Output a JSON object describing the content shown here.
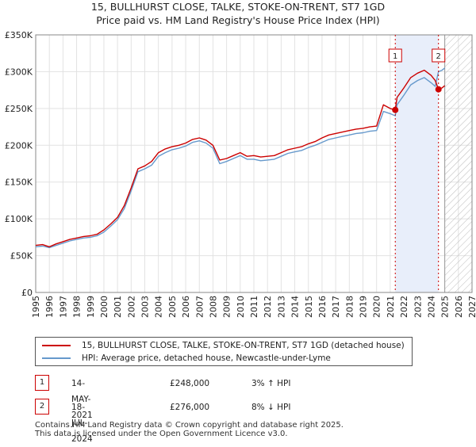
{
  "title_line1": "15, BULLHURST CLOSE, TALKE, STOKE-ON-TRENT, ST7 1GD",
  "title_line2": "Price paid vs. HM Land Registry's House Price Index (HPI)",
  "colors": {
    "property": "#cc0000",
    "hpi": "#6699cc",
    "shade": "#e8eefa",
    "annotation": "#cc0000"
  },
  "chart_data": {
    "type": "line",
    "title": "15, BULLHURST CLOSE, TALKE, STOKE-ON-TRENT, ST7 1GD",
    "subtitle": "Price paid vs. HM Land Registry's House Price Index (HPI)",
    "xlabel": "",
    "ylabel": "",
    "xlim": [
      1995,
      2027
    ],
    "ylim": [
      0,
      350000
    ],
    "x_ticks": [
      1995,
      1996,
      1997,
      1998,
      1999,
      2000,
      2001,
      2002,
      2003,
      2004,
      2005,
      2006,
      2007,
      2008,
      2009,
      2010,
      2011,
      2012,
      2013,
      2014,
      2015,
      2016,
      2017,
      2018,
      2019,
      2020,
      2021,
      2022,
      2023,
      2024,
      2025,
      2026,
      2027
    ],
    "y_ticks": [
      {
        "value": 0,
        "label": "£0"
      },
      {
        "value": 50000,
        "label": "£50K"
      },
      {
        "value": 100000,
        "label": "£100K"
      },
      {
        "value": 150000,
        "label": "£150K"
      },
      {
        "value": 200000,
        "label": "£200K"
      },
      {
        "value": 250000,
        "label": "£250K"
      },
      {
        "value": 300000,
        "label": "£300K"
      },
      {
        "value": 350000,
        "label": "£350K"
      }
    ],
    "grid": true,
    "shaded_period": [
      2021.37,
      2024.54
    ],
    "hatched_from": 2025.0,
    "series": [
      {
        "name": "15, BULLHURST CLOSE, TALKE, STOKE-ON-TRENT, ST7 1GD (detached house)",
        "color": "#cc0000",
        "x": [
          1995.0,
          1995.5,
          1996.0,
          1996.5,
          1997.0,
          1997.5,
          1998.0,
          1998.5,
          1999.0,
          1999.5,
          2000.0,
          2000.5,
          2001.0,
          2001.5,
          2002.0,
          2002.5,
          2003.0,
          2003.5,
          2004.0,
          2004.5,
          2005.0,
          2005.5,
          2006.0,
          2006.5,
          2007.0,
          2007.5,
          2008.0,
          2008.5,
          2009.0,
          2009.5,
          2010.0,
          2010.5,
          2011.0,
          2011.5,
          2012.0,
          2012.5,
          2013.0,
          2013.5,
          2014.0,
          2014.5,
          2015.0,
          2015.5,
          2016.0,
          2016.5,
          2017.0,
          2017.5,
          2018.0,
          2018.5,
          2019.0,
          2019.5,
          2020.0,
          2020.5,
          2021.0,
          2021.37,
          2021.5,
          2022.0,
          2022.5,
          2023.0,
          2023.5,
          2024.0,
          2024.3,
          2024.54,
          2024.8,
          2025.0
        ],
        "values": [
          64000,
          65000,
          62000,
          66000,
          69000,
          72000,
          74000,
          76000,
          77000,
          79000,
          85000,
          93000,
          102000,
          118000,
          142000,
          168000,
          172000,
          178000,
          190000,
          195000,
          198000,
          200000,
          203000,
          208000,
          210000,
          207000,
          200000,
          180000,
          182000,
          186000,
          190000,
          185000,
          186000,
          184000,
          185000,
          186000,
          190000,
          194000,
          196000,
          198000,
          202000,
          205000,
          210000,
          214000,
          216000,
          218000,
          220000,
          222000,
          223000,
          225000,
          226000,
          255000,
          250000,
          248000,
          265000,
          278000,
          292000,
          298000,
          302000,
          295000,
          288000,
          276000,
          278000,
          281000
        ]
      },
      {
        "name": "HPI: Average price, detached house, Newcastle-under-Lyme",
        "color": "#6699cc",
        "x": [
          1995.0,
          1995.5,
          1996.0,
          1996.5,
          1997.0,
          1997.5,
          1998.0,
          1998.5,
          1999.0,
          1999.5,
          2000.0,
          2000.5,
          2001.0,
          2001.5,
          2002.0,
          2002.5,
          2003.0,
          2003.5,
          2004.0,
          2004.5,
          2005.0,
          2005.5,
          2006.0,
          2006.5,
          2007.0,
          2007.5,
          2008.0,
          2008.5,
          2009.0,
          2009.5,
          2010.0,
          2010.5,
          2011.0,
          2011.5,
          2012.0,
          2012.5,
          2013.0,
          2013.5,
          2014.0,
          2014.5,
          2015.0,
          2015.5,
          2016.0,
          2016.5,
          2017.0,
          2017.5,
          2018.0,
          2018.5,
          2019.0,
          2019.5,
          2020.0,
          2020.5,
          2021.0,
          2021.37,
          2021.5,
          2022.0,
          2022.5,
          2023.0,
          2023.5,
          2024.0,
          2024.3,
          2024.54,
          2024.8,
          2025.0
        ],
        "values": [
          62000,
          63000,
          61000,
          64000,
          67000,
          70000,
          72000,
          74000,
          75000,
          77000,
          82000,
          90000,
          99000,
          114000,
          138000,
          164000,
          168000,
          173000,
          185000,
          190000,
          194000,
          196000,
          199000,
          204000,
          206000,
          203000,
          196000,
          175000,
          178000,
          182000,
          186000,
          181000,
          181000,
          179000,
          180000,
          181000,
          185000,
          189000,
          191000,
          193000,
          197000,
          200000,
          204000,
          208000,
          210000,
          212000,
          214000,
          216000,
          217000,
          219000,
          220000,
          246000,
          243000,
          240000,
          255000,
          268000,
          282000,
          288000,
          292000,
          285000,
          280000,
          300000,
          302000,
          305000
        ]
      }
    ],
    "annotations": [
      {
        "label": "1",
        "x": 2021.37,
        "value": 248000
      },
      {
        "label": "2",
        "x": 2024.54,
        "value": 276000
      }
    ]
  },
  "legend": {
    "property_label": "15, BULLHURST CLOSE, TALKE, STOKE-ON-TRENT, ST7 1GD (detached house)",
    "hpi_label": "HPI: Average price, detached house, Newcastle-under-Lyme"
  },
  "transactions": [
    {
      "num": "1",
      "date": "14-MAY-2021",
      "price": "£248,000",
      "hpi": "3% ↑ HPI"
    },
    {
      "num": "2",
      "date": "18-JUL-2024",
      "price": "£276,000",
      "hpi": "8% ↓ HPI"
    }
  ],
  "footer": {
    "line1": "Contains HM Land Registry data © Crown copyright and database right 2025.",
    "line2": "This data is licensed under the Open Government Licence v3.0."
  }
}
